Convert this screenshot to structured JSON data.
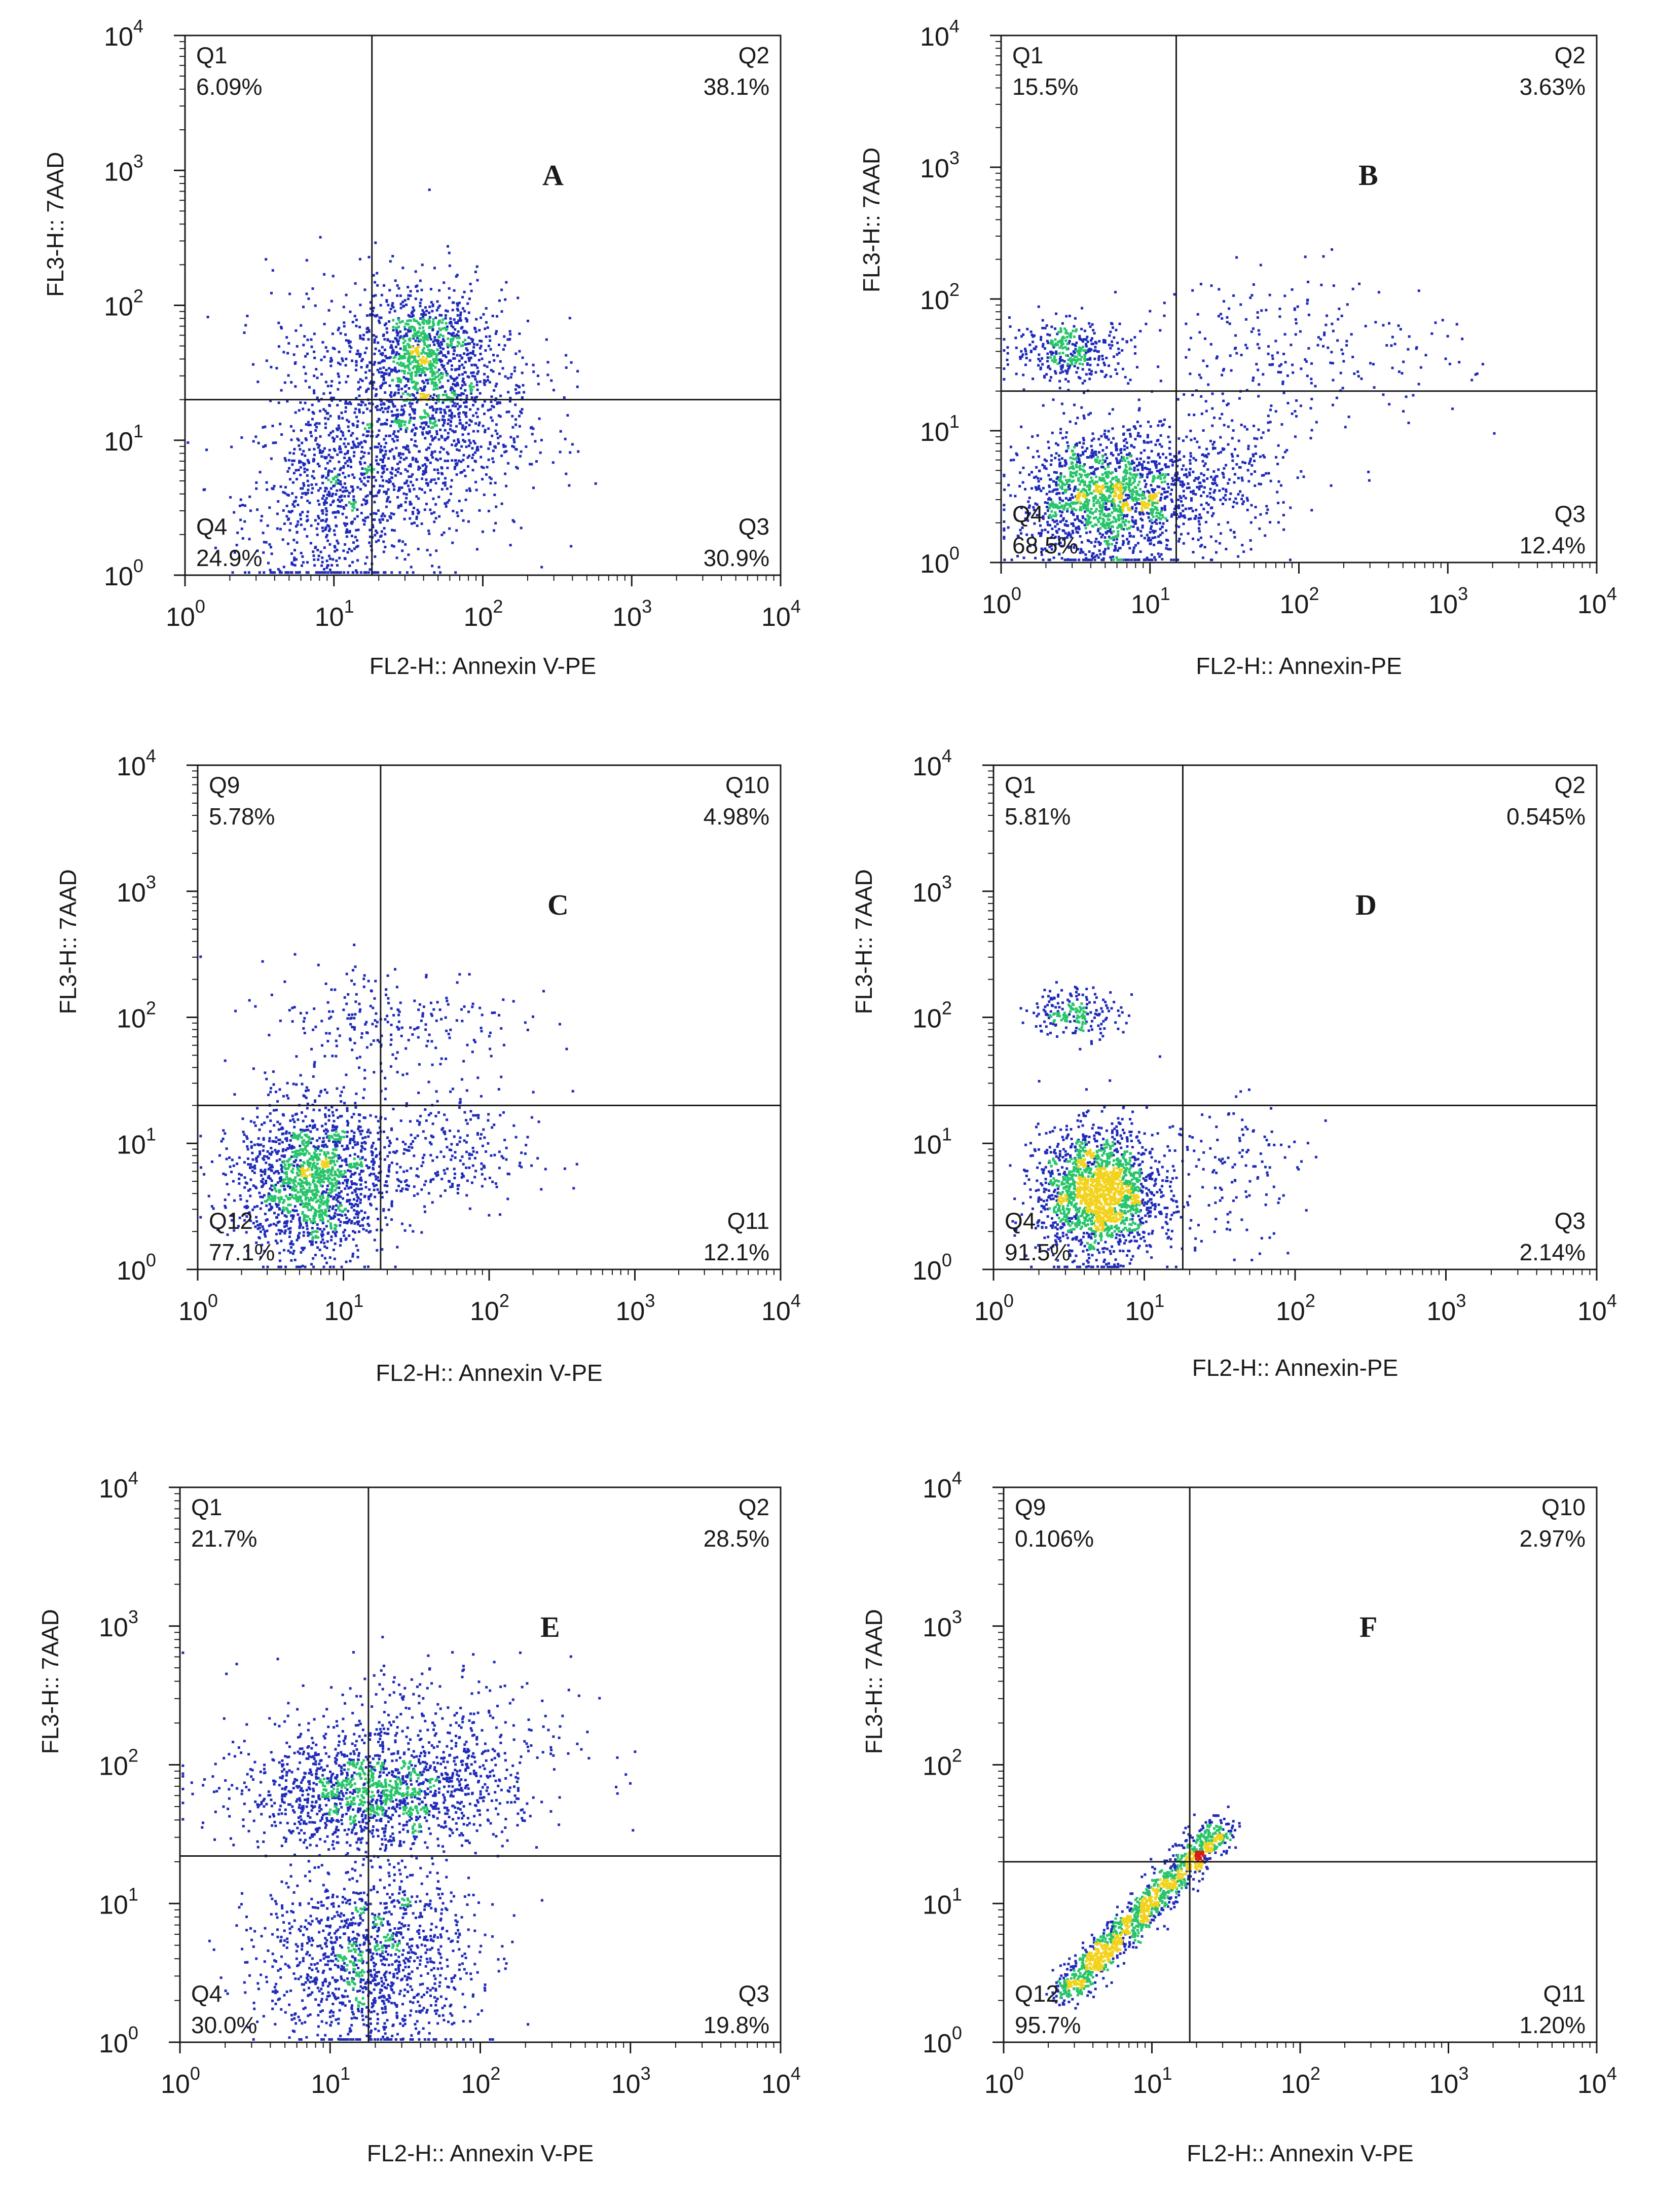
{
  "figure": {
    "description_type": "flow cytometry quadrant dot plots (Annexin V-PE vs 7AAD)",
    "colors": {
      "low_density": "#1f2bb8",
      "mid_density": "#27c46a",
      "high_density": "#f2d21b",
      "peak_density": "#d91c12",
      "gate_lines": "#1a1a1a"
    }
  },
  "chart_data": [
    {
      "type": "scatter",
      "panel_label": "A",
      "xlabel": "FL2-H:: Annexin V-PE",
      "ylabel": "FL3-H:: 7AAD",
      "xlim": [
        1,
        10000
      ],
      "ylim": [
        1,
        10000
      ],
      "scale": "log10",
      "gate": {
        "x": 18,
        "y": 20
      },
      "quadrants": [
        {
          "name": "Q1",
          "percent": "6.09%",
          "position": "top-left"
        },
        {
          "name": "Q2",
          "percent": "38.1%",
          "position": "top-right"
        },
        {
          "name": "Q3",
          "percent": "30.9%",
          "position": "bottom-right"
        },
        {
          "name": "Q4",
          "percent": "24.9%",
          "position": "bottom-left"
        }
      ],
      "populations": [
        {
          "center": [
            10,
            3.5
          ],
          "spread": [
            0.3,
            0.38
          ],
          "count": 700
        },
        {
          "center": [
            42,
            45
          ],
          "spread": [
            0.18,
            0.22
          ],
          "count": 600
        },
        {
          "center": [
            40,
            12
          ],
          "spread": [
            0.35,
            0.4
          ],
          "count": 900
        },
        {
          "center": [
            30,
            40
          ],
          "spread": [
            0.45,
            0.35
          ],
          "count": 500
        }
      ]
    },
    {
      "type": "scatter",
      "panel_label": "B",
      "xlabel": "FL2-H:: Annexin-PE",
      "ylabel": "FL3-H:: 7AAD",
      "xlim": [
        1,
        10000
      ],
      "ylim": [
        1,
        10000
      ],
      "scale": "log10",
      "gate": {
        "x": 15,
        "y": 20
      },
      "quadrants": [
        {
          "name": "Q1",
          "percent": "15.5%",
          "position": "top-left"
        },
        {
          "name": "Q2",
          "percent": "3.63%",
          "position": "top-right"
        },
        {
          "name": "Q3",
          "percent": "12.4%",
          "position": "bottom-right"
        },
        {
          "name": "Q4",
          "percent": "68.5%",
          "position": "bottom-left"
        }
      ],
      "populations": [
        {
          "center": [
            5,
            3
          ],
          "spread": [
            0.28,
            0.25
          ],
          "count": 1500
        },
        {
          "center": [
            3,
            40
          ],
          "spread": [
            0.2,
            0.12
          ],
          "count": 350
        },
        {
          "center": [
            25,
            4
          ],
          "spread": [
            0.3,
            0.25
          ],
          "count": 350
        },
        {
          "center": [
            100,
            40
          ],
          "spread": [
            0.55,
            0.3
          ],
          "count": 250
        }
      ]
    },
    {
      "type": "scatter",
      "panel_label": "C",
      "xlabel": "FL2-H:: Annexin V-PE",
      "ylabel": "FL3-H:: 7AAD",
      "xlim": [
        1,
        10000
      ],
      "ylim": [
        1,
        10000
      ],
      "scale": "log10",
      "gate": {
        "x": 18,
        "y": 20
      },
      "quadrants": [
        {
          "name": "Q9",
          "percent": "5.78%",
          "position": "top-left"
        },
        {
          "name": "Q10",
          "percent": "4.98%",
          "position": "top-right"
        },
        {
          "name": "Q11",
          "percent": "12.1%",
          "position": "bottom-right"
        },
        {
          "name": "Q12",
          "percent": "77.1%",
          "position": "bottom-left"
        }
      ],
      "populations": [
        {
          "center": [
            6,
            5
          ],
          "spread": [
            0.25,
            0.3
          ],
          "count": 1500
        },
        {
          "center": [
            40,
            8
          ],
          "spread": [
            0.35,
            0.25
          ],
          "count": 300
        },
        {
          "center": [
            20,
            90
          ],
          "spread": [
            0.45,
            0.25
          ],
          "count": 250
        }
      ]
    },
    {
      "type": "scatter",
      "panel_label": "D",
      "xlabel": "FL2-H:: Annexin-PE",
      "ylabel": "FL3-H:: 7AAD",
      "xlim": [
        1,
        10000
      ],
      "ylim": [
        1,
        10000
      ],
      "scale": "log10",
      "gate": {
        "x": 18,
        "y": 20
      },
      "quadrants": [
        {
          "name": "Q1",
          "percent": "5.81%",
          "position": "top-left"
        },
        {
          "name": "Q2",
          "percent": "0.545%",
          "position": "top-right"
        },
        {
          "name": "Q3",
          "percent": "2.14%",
          "position": "bottom-right"
        },
        {
          "name": "Q4",
          "percent": "91.5%",
          "position": "bottom-left"
        }
      ],
      "populations": [
        {
          "center": [
            5,
            4
          ],
          "spread": [
            0.2,
            0.25
          ],
          "count": 1800
        },
        {
          "center": [
            3.5,
            110
          ],
          "spread": [
            0.15,
            0.1
          ],
          "count": 200
        },
        {
          "center": [
            30,
            6
          ],
          "spread": [
            0.3,
            0.3
          ],
          "count": 150
        }
      ]
    },
    {
      "type": "scatter",
      "panel_label": "E",
      "xlabel": "FL2-H:: Annexin V-PE",
      "ylabel": "FL3-H:: 7AAD",
      "xlim": [
        1,
        10000
      ],
      "ylim": [
        1,
        10000
      ],
      "scale": "log10",
      "gate": {
        "x": 18,
        "y": 22
      },
      "quadrants": [
        {
          "name": "Q1",
          "percent": "21.7%",
          "position": "top-left"
        },
        {
          "name": "Q2",
          "percent": "28.5%",
          "position": "top-right"
        },
        {
          "name": "Q3",
          "percent": "19.8%",
          "position": "bottom-right"
        },
        {
          "name": "Q4",
          "percent": "30.0%",
          "position": "bottom-left"
        }
      ],
      "populations": [
        {
          "center": [
            20,
            60
          ],
          "spread": [
            0.45,
            0.18
          ],
          "count": 1300
        },
        {
          "center": [
            18,
            4
          ],
          "spread": [
            0.35,
            0.35
          ],
          "count": 1300
        },
        {
          "center": [
            40,
            150
          ],
          "spread": [
            0.5,
            0.3
          ],
          "count": 400
        }
      ]
    },
    {
      "type": "scatter",
      "panel_label": "F",
      "xlabel": "FL2-H:: Annexin V-PE",
      "ylabel": "FL3-H:: 7AAD",
      "xlim": [
        1,
        10000
      ],
      "ylim": [
        1,
        10000
      ],
      "scale": "log10",
      "gate": {
        "x": 18,
        "y": 20
      },
      "quadrants": [
        {
          "name": "Q9",
          "percent": "0.106%",
          "position": "top-left"
        },
        {
          "name": "Q10",
          "percent": "2.97%",
          "position": "top-right"
        },
        {
          "name": "Q11",
          "percent": "1.20%",
          "position": "bottom-right"
        },
        {
          "name": "Q12",
          "percent": "95.7%",
          "position": "bottom-left"
        }
      ],
      "populations": [
        {
          "diagonal": true,
          "start": [
            2.5,
            2.2
          ],
          "end": [
            30,
            35
          ],
          "count": 1300
        }
      ]
    }
  ]
}
